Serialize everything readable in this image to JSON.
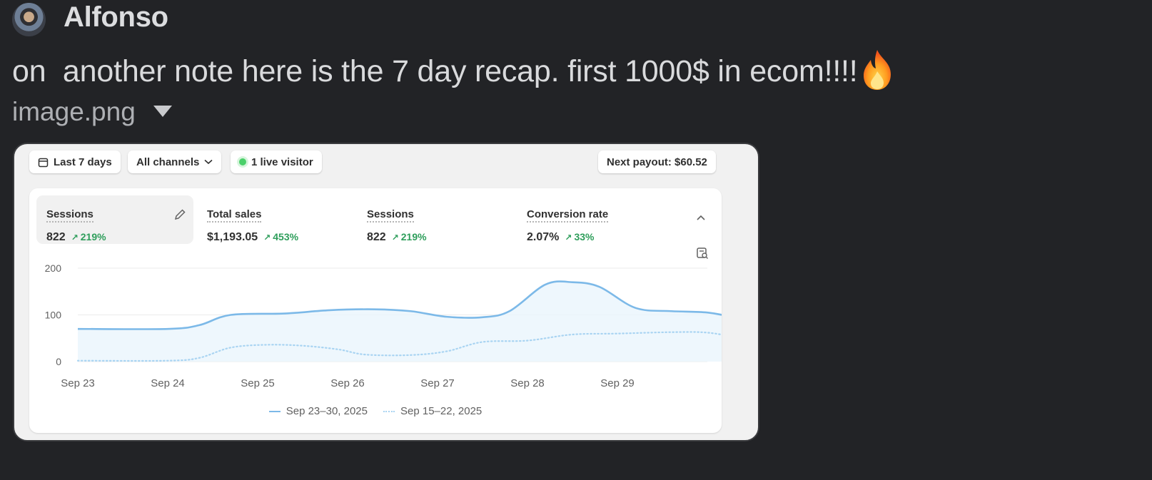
{
  "message": {
    "author": "Alfonso",
    "text": "on  another note here is the 7 day recap. first 1000$ in ecom!!!!",
    "emoji": "fire-emoji",
    "attachment_name": "image.png"
  },
  "dashboard": {
    "date_filter": "Last 7 days",
    "channel_filter": "All channels",
    "live_visitors": "1 live visitor",
    "next_payout": "Next payout: $60.52",
    "metrics": [
      {
        "label": "Sessions",
        "value": "822",
        "change": "219%"
      },
      {
        "label": "Total sales",
        "value": "$1,193.05",
        "change": "453%"
      },
      {
        "label": "Sessions",
        "value": "822",
        "change": "219%"
      },
      {
        "label": "Conversion rate",
        "value": "2.07%",
        "change": "33%"
      }
    ]
  },
  "chart_data": {
    "type": "area",
    "x": [
      "Sep 23",
      "Sep 24",
      "Sep 25",
      "Sep 26",
      "Sep 27",
      "Sep 28",
      "Sep 29"
    ],
    "yticks": [
      "200",
      "100",
      "0"
    ],
    "ylim": [
      0,
      200
    ],
    "series": [
      {
        "name": "Sep 23–30, 2025",
        "style": "solid",
        "color": "#7cb9e8",
        "points": [
          [
            0,
            70
          ],
          [
            1,
            70
          ],
          [
            1.35,
            78
          ],
          [
            1.7,
            100
          ],
          [
            2.3,
            103
          ],
          [
            2.8,
            110
          ],
          [
            3.3,
            112
          ],
          [
            3.7,
            108
          ],
          [
            4.1,
            96
          ],
          [
            4.5,
            95
          ],
          [
            4.8,
            108
          ],
          [
            5.2,
            165
          ],
          [
            5.5,
            170
          ],
          [
            5.8,
            160
          ],
          [
            6.2,
            115
          ],
          [
            6.6,
            108
          ],
          [
            7,
            105
          ],
          [
            7.4,
            92
          ],
          [
            7.7,
            90
          ]
        ]
      },
      {
        "name": "Sep 15–22, 2025",
        "style": "dotted",
        "color": "#a9d4f2",
        "points": [
          [
            0,
            2
          ],
          [
            1,
            2
          ],
          [
            1.35,
            8
          ],
          [
            1.7,
            30
          ],
          [
            2.1,
            36
          ],
          [
            2.5,
            34
          ],
          [
            2.9,
            26
          ],
          [
            3.2,
            15
          ],
          [
            3.7,
            14
          ],
          [
            4.1,
            22
          ],
          [
            4.5,
            42
          ],
          [
            5,
            45
          ],
          [
            5.5,
            58
          ],
          [
            6,
            60
          ],
          [
            6.6,
            63
          ],
          [
            7,
            62
          ],
          [
            7.4,
            50
          ],
          [
            7.7,
            46
          ]
        ]
      }
    ]
  }
}
